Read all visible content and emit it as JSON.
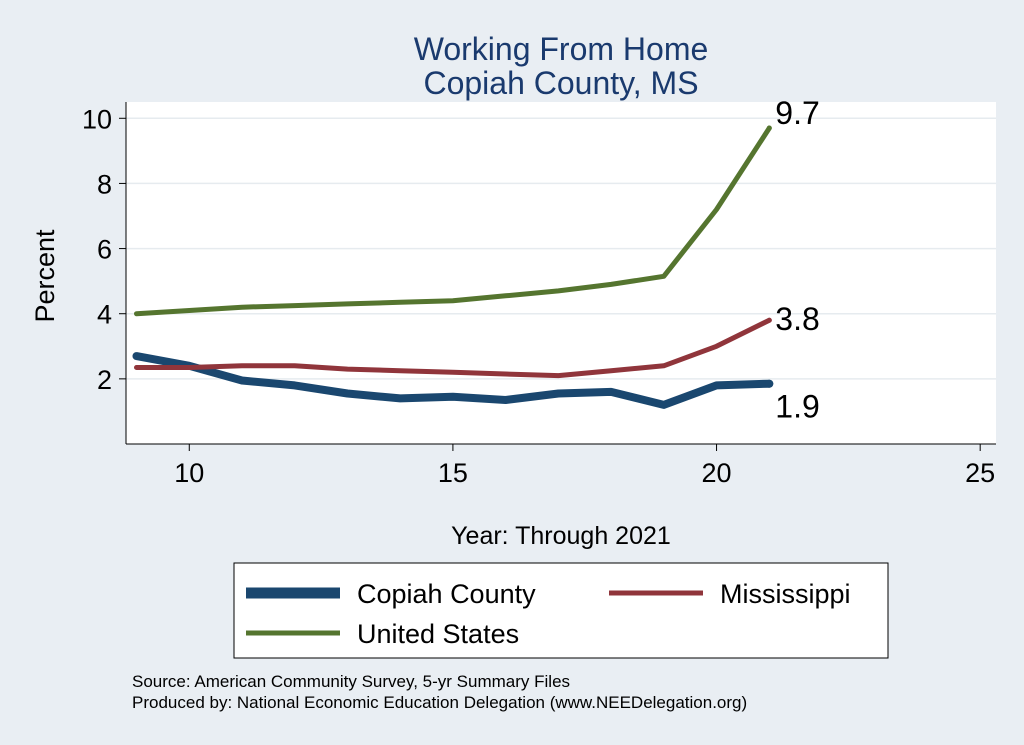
{
  "chart_data": {
    "type": "line",
    "title": "Working From Home",
    "subtitle": "Copiah County, MS",
    "xlabel": "Year: Through 2021",
    "ylabel": "Percent",
    "xlim": [
      8.8,
      25.3
    ],
    "ylim": [
      0.0,
      10.5
    ],
    "x_ticks": [
      10,
      15,
      20,
      25
    ],
    "y_ticks": [
      2,
      4,
      6,
      8,
      10
    ],
    "grid": true,
    "x": [
      9,
      10,
      11,
      12,
      13,
      14,
      15,
      16,
      17,
      18,
      19,
      20,
      21
    ],
    "series": [
      {
        "name": "Copiah County",
        "color": "#1a476f",
        "width": "thick",
        "values": [
          2.7,
          2.4,
          1.95,
          1.8,
          1.55,
          1.4,
          1.45,
          1.35,
          1.55,
          1.6,
          1.2,
          1.8,
          1.85
        ],
        "end_label": "1.9"
      },
      {
        "name": "Mississippi",
        "color": "#90353b",
        "width": "medium",
        "values": [
          2.35,
          2.35,
          2.4,
          2.4,
          2.3,
          2.25,
          2.2,
          2.15,
          2.1,
          2.25,
          2.4,
          3.0,
          3.8
        ],
        "end_label": "3.8"
      },
      {
        "name": "United States",
        "color": "#55752f",
        "width": "medium",
        "values": [
          4.0,
          4.1,
          4.2,
          4.25,
          4.3,
          4.35,
          4.4,
          4.55,
          4.7,
          4.9,
          5.15,
          7.2,
          9.7
        ],
        "end_label": "9.7"
      }
    ],
    "legend_position": "bottom"
  },
  "footer": {
    "source": "Source: American Community Survey, 5-yr Summary Files",
    "produced_by": "Produced by: National Economic Education Delegation (www.NEEDelegation.org)"
  }
}
